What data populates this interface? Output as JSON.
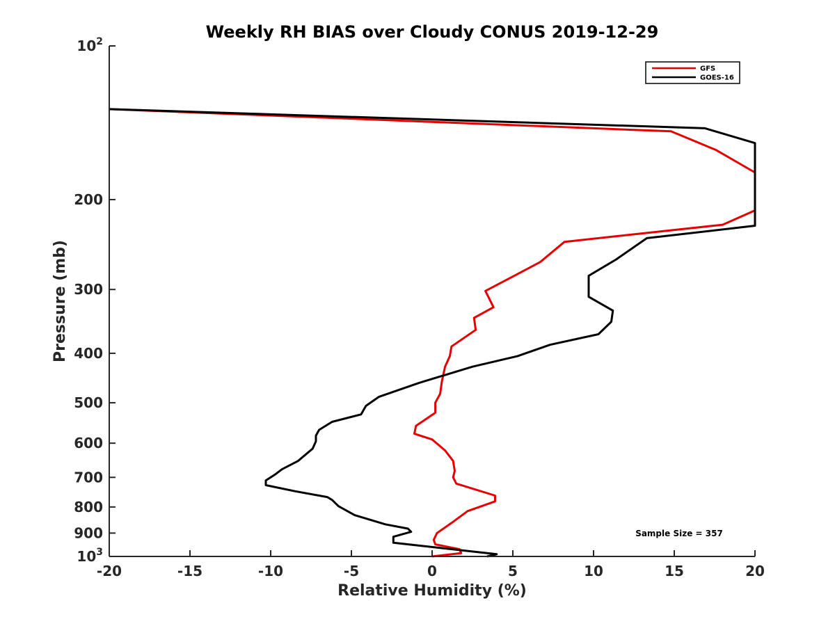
{
  "chart_data": {
    "type": "line",
    "title": "Weekly RH BIAS over Cloudy CONUS 2019-12-29",
    "xlabel": "Relative Humidity (%)",
    "ylabel": "Pressure (mb)",
    "xlim": [
      -20,
      20
    ],
    "ylim": [
      100,
      1000
    ],
    "y_scale": "log",
    "y_reversed": false,
    "x_ticks": [
      -20,
      -15,
      -10,
      -5,
      0,
      5,
      10,
      15,
      20
    ],
    "x_tick_labels": [
      "-20",
      "-15",
      "-10",
      "-5",
      "0",
      "5",
      "10",
      "15",
      "20"
    ],
    "y_tick_labels": [
      {
        "value": 100,
        "base": "10",
        "exp": "2"
      },
      {
        "value": 200,
        "text": "200"
      },
      {
        "value": 300,
        "text": "300"
      },
      {
        "value": 400,
        "text": "400"
      },
      {
        "value": 500,
        "text": "500"
      },
      {
        "value": 600,
        "text": "600"
      },
      {
        "value": 700,
        "text": "700"
      },
      {
        "value": 800,
        "text": "800"
      },
      {
        "value": 900,
        "text": "900"
      },
      {
        "value": 1000,
        "base": "10",
        "exp": "3"
      }
    ],
    "grid": false,
    "legend_position": "top-right",
    "annotation": "Sample Size = 357",
    "series": [
      {
        "name": "GFS",
        "color": "#e60000",
        "x": [
          -20,
          14.8,
          17.6,
          20,
          20,
          18,
          8.2,
          6.7,
          5.0,
          3.3,
          3.8,
          2.6,
          2.7,
          1.2,
          1.1,
          0.8,
          0.6,
          0.5,
          0.2,
          0.2,
          -1.0,
          -1.1,
          0,
          0.8,
          1.3,
          1.4,
          1.3,
          1.5,
          3.9,
          3.9,
          2.2,
          1.2,
          0.3,
          0.1,
          0.2,
          1.7,
          1.8,
          0
        ],
        "y": [
          133,
          147,
          160,
          177,
          210,
          224,
          242,
          265,
          283,
          302,
          325,
          341,
          360,
          388,
          405,
          425,
          455,
          480,
          500,
          523,
          555,
          575,
          590,
          620,
          650,
          680,
          700,
          720,
          760,
          780,
          815,
          860,
          900,
          928,
          947,
          968,
          985,
          1000
        ]
      },
      {
        "name": "GOES-16",
        "color": "#000000",
        "x": [
          -20,
          16.9,
          20,
          20,
          13.3,
          11.4,
          9.7,
          9.7,
          11.2,
          11.1,
          10.3,
          7.3,
          5.3,
          2.5,
          -0.8,
          -3.3,
          -4.1,
          -4.4,
          -6.2,
          -7.0,
          -7.2,
          -7.2,
          -7.4,
          -8.3,
          -9.3,
          -9.7,
          -10.3,
          -10.3,
          -8.5,
          -6.5,
          -6.2,
          -5.8,
          -4.8,
          -2.9,
          -1.5,
          -1.3,
          -2.4,
          -2.4,
          4.0,
          3.4
        ],
        "y": [
          133,
          145,
          155,
          225,
          238,
          262,
          282,
          310,
          330,
          347,
          367,
          385,
          405,
          425,
          457,
          487,
          507,
          527,
          545,
          565,
          580,
          595,
          615,
          650,
          675,
          690,
          710,
          725,
          745,
          765,
          775,
          797,
          830,
          865,
          882,
          895,
          915,
          940,
          990,
          1000
        ]
      }
    ]
  }
}
